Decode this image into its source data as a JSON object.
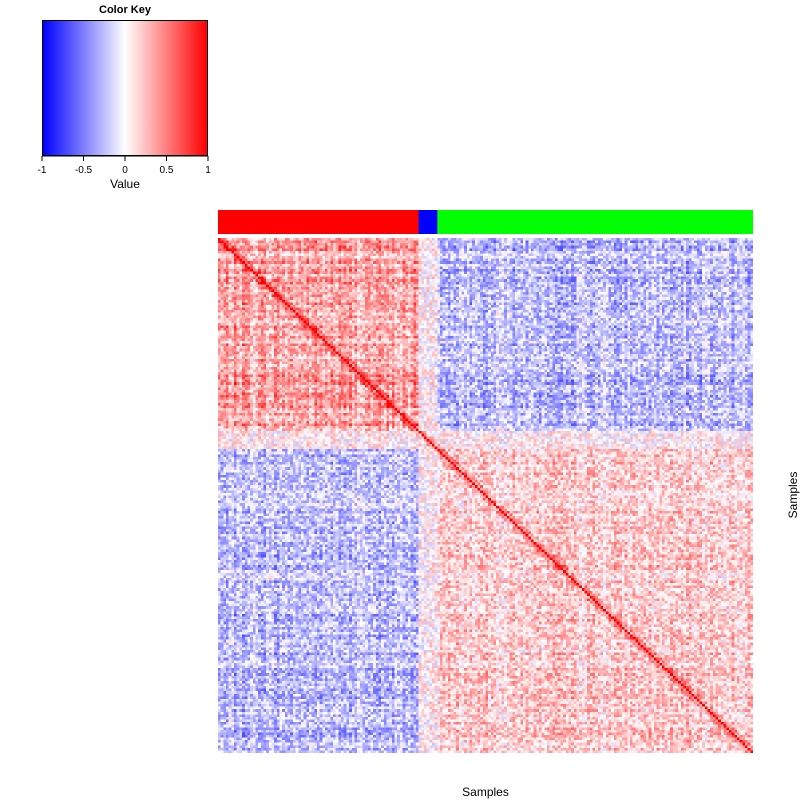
{
  "chart_data": {
    "type": "heatmap",
    "title": "",
    "xlabel": "Samples",
    "ylabel": "Samples",
    "color_key": {
      "title": "Color Key",
      "label": "Value",
      "ticks": [
        -1,
        -0.5,
        0,
        0.5,
        1
      ],
      "tick_labels": [
        "-1",
        "-0.5",
        "0",
        "0.5",
        "1"
      ],
      "range": [
        -1,
        1
      ],
      "colors": {
        "low": "#0000ff",
        "mid": "#ffffff",
        "high": "#ff0000"
      }
    },
    "n_samples": 200,
    "diagonal_value": 1,
    "groups": [
      {
        "color": "#ff0000",
        "count": 75
      },
      {
        "color": "#0000ff",
        "count": 7
      },
      {
        "color": "#00ff00",
        "count": 118
      }
    ],
    "block_means": {
      "within_group_1": 0.35,
      "within_group_3": 0.2,
      "between_groups_1_3": -0.25
    }
  }
}
